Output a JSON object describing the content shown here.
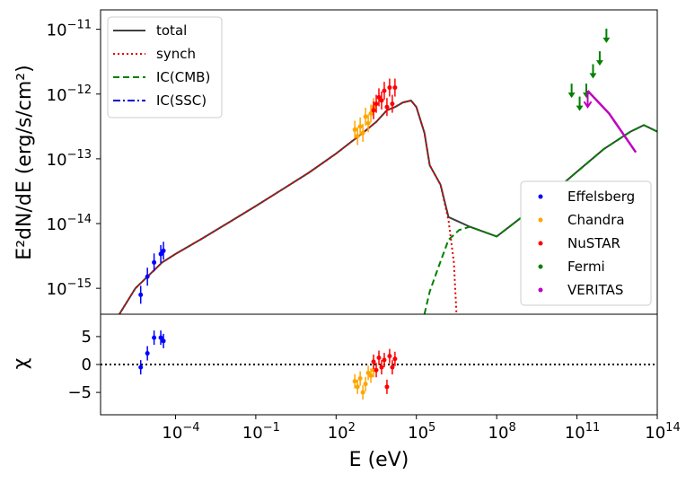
{
  "chart_data": [
    {
      "type": "line",
      "panel": "main",
      "ylabel": "E²dN/dE (erg/s/cm²)",
      "xscale": "log",
      "yscale": "log",
      "xlim_log10": [
        -6.8,
        14
      ],
      "ylim_log10": [
        -15.4,
        -10.7
      ],
      "x_ticks": [
        {
          "log": -4,
          "label": "10−4"
        },
        {
          "log": -1,
          "label": "10−1"
        },
        {
          "log": 2,
          "label": "102"
        },
        {
          "log": 5,
          "label": "105"
        },
        {
          "log": 8,
          "label": "108"
        },
        {
          "log": 11,
          "label": "1011"
        },
        {
          "log": 14,
          "label": "1014"
        }
      ],
      "y_ticks": [
        {
          "log": -11,
          "label": "10−11"
        },
        {
          "log": -12,
          "label": "10−12"
        },
        {
          "log": -13,
          "label": "10−13"
        },
        {
          "log": -14,
          "label": "10−14"
        },
        {
          "log": -15,
          "label": "10−15"
        }
      ],
      "series": [
        {
          "name": "total",
          "style": "solid",
          "color": "#404040",
          "log_x": [
            -6.1,
            -5.5,
            -5,
            -4.5,
            -4,
            -3.5,
            -3,
            -2,
            -1,
            0,
            1,
            2,
            3,
            3.5,
            3.9,
            4.2,
            4.5,
            4.8,
            5,
            5.3,
            5.5,
            5.9,
            6.2,
            7,
            8,
            9,
            10,
            11,
            12,
            13,
            13.5,
            14
          ],
          "log_y": [
            -15.4,
            -15,
            -14.8,
            -14.6,
            -14.47,
            -14.35,
            -14.23,
            -13.98,
            -13.73,
            -13.47,
            -13.21,
            -12.92,
            -12.6,
            -12.43,
            -12.25,
            -12.2,
            -12.13,
            -12.1,
            -12.2,
            -12.6,
            -13.1,
            -13.4,
            -13.9,
            -14.05,
            -14.2,
            -13.88,
            -13.55,
            -13.2,
            -12.85,
            -12.58,
            -12.48,
            -12.58
          ]
        },
        {
          "name": "synch",
          "style": "dotted",
          "color": "#e00000",
          "log_x": [
            -6.1,
            -5.5,
            -5,
            -4.5,
            -4,
            -3.5,
            -3,
            -2,
            -1,
            0,
            1,
            2,
            3,
            3.5,
            3.9,
            4.2,
            4.5,
            4.8,
            5,
            5.3,
            5.5,
            5.9,
            6.2,
            6.4,
            6.5
          ],
          "log_y": [
            -15.4,
            -15,
            -14.8,
            -14.6,
            -14.47,
            -14.35,
            -14.23,
            -13.98,
            -13.73,
            -13.47,
            -13.21,
            -12.92,
            -12.6,
            -12.43,
            -12.25,
            -12.2,
            -12.13,
            -12.1,
            -12.2,
            -12.6,
            -13.1,
            -13.4,
            -13.95,
            -14.6,
            -15.4
          ]
        },
        {
          "name": "IC(CMB)",
          "style": "dashed",
          "color": "#008000",
          "log_x": [
            5.3,
            5.5,
            5.8,
            6.2,
            6.6,
            7,
            8,
            9,
            10,
            11,
            12,
            13,
            13.5,
            14
          ],
          "log_y": [
            -15.4,
            -15.05,
            -14.7,
            -14.25,
            -14.1,
            -14.05,
            -14.2,
            -13.88,
            -13.55,
            -13.2,
            -12.85,
            -12.58,
            -12.48,
            -12.58
          ]
        },
        {
          "name": "IC(SSC)",
          "style": "dashdot",
          "color": "#0000cc",
          "log_x": [],
          "log_y": []
        }
      ],
      "points": [
        {
          "name": "Effelsberg",
          "color": "#0000ff",
          "log_x": [
            -5.3,
            -5.05,
            -4.8,
            -4.55,
            -4.45
          ],
          "log_y": [
            -15.1,
            -14.82,
            -14.6,
            -14.47,
            -14.42
          ]
        },
        {
          "name": "Chandra",
          "color": "#ffa500",
          "log_x": [
            2.7,
            2.8,
            2.9,
            3.0,
            3.1,
            3.2,
            3.3,
            3.4
          ],
          "log_y": [
            -12.55,
            -12.65,
            -12.5,
            -12.6,
            -12.35,
            -12.45,
            -12.3,
            -12.2
          ]
        },
        {
          "name": "NuSTAR",
          "color": "#ff0000",
          "log_x": [
            3.4,
            3.5,
            3.6,
            3.7,
            3.8,
            3.9,
            4.0,
            4.1,
            4.2
          ],
          "log_y": [
            -12.25,
            -12.15,
            -12.05,
            -12.1,
            -11.95,
            -12.2,
            -11.9,
            -12.15,
            -11.9
          ]
        },
        {
          "name": "Fermi",
          "color": "#008000",
          "log_x": [
            10.8,
            11.1,
            11.35,
            11.6,
            11.85,
            12.1
          ],
          "log_y": [
            -11.95,
            -12.15,
            -11.95,
            -11.65,
            -11.45,
            -11.1
          ]
        },
        {
          "name": "VERITAS",
          "color": "#c000c0",
          "log_x": [
            11.4,
            12.2,
            13.2
          ],
          "log_y": [
            -11.95,
            -12.3,
            -12.9
          ]
        }
      ],
      "legends": [
        [
          "total",
          "synch",
          "IC(CMB)",
          "IC(SSC)"
        ],
        [
          "Effelsberg",
          "Chandra",
          "NuSTAR",
          "Fermi",
          "VERITAS"
        ]
      ]
    },
    {
      "type": "scatter",
      "panel": "residual",
      "xlabel": "E (eV)",
      "ylabel": "χ",
      "ylim": [
        -9,
        9
      ],
      "y_ticks": [
        {
          "v": 5,
          "label": "5"
        },
        {
          "v": 0,
          "label": "0"
        },
        {
          "v": -5,
          "label": "−5"
        }
      ],
      "points": [
        {
          "name": "Effelsberg",
          "color": "#0000ff",
          "log_x": [
            -5.3,
            -5.05,
            -4.8,
            -4.55,
            -4.45
          ],
          "y": [
            -0.5,
            2,
            4.8,
            4.8,
            4.2
          ]
        },
        {
          "name": "Chandra",
          "color": "#ffa500",
          "log_x": [
            2.7,
            2.8,
            2.9,
            3.0,
            3.1,
            3.2,
            3.3,
            3.4
          ],
          "y": [
            -3,
            -4,
            -2.5,
            -5,
            -3.5,
            -1.5,
            -2,
            -1
          ]
        },
        {
          "name": "NuSTAR",
          "color": "#ff0000",
          "log_x": [
            3.4,
            3.5,
            3.6,
            3.7,
            3.8,
            3.9,
            4.0,
            4.1,
            4.2
          ],
          "y": [
            0.5,
            -1,
            1.2,
            -0.5,
            0.8,
            -4,
            1.5,
            -0.5,
            1
          ]
        }
      ]
    }
  ]
}
